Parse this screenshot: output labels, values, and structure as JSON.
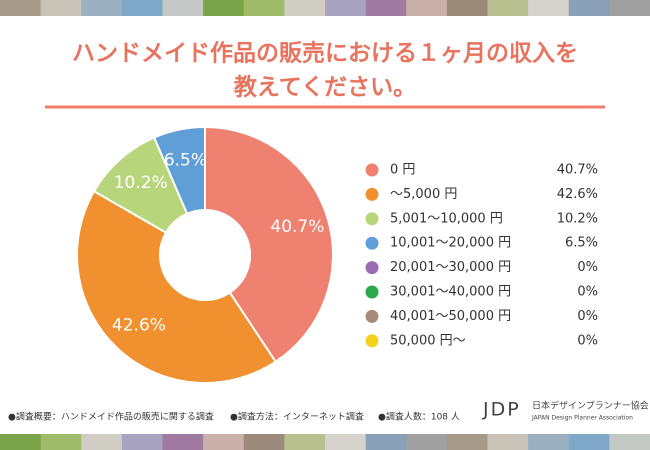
{
  "chart_data": {
    "type": "pie",
    "title": [
      "ハンドメイド作品の販売における１ヶ月の収入を",
      "教えてください。"
    ],
    "categories": [
      "0 円",
      "〜5,000 円",
      "5,001〜10,000 円",
      "10,001〜20,000 円",
      "20,001〜30,000 円",
      "30,001〜40,000 円",
      "40,001〜50,000 円",
      "50,000 円〜"
    ],
    "values": [
      40.7,
      42.6,
      10.2,
      6.5,
      0,
      0,
      0,
      0
    ],
    "value_labels": [
      "40.7%",
      "42.6%",
      "10.2%",
      "6.5%",
      "0%",
      "0%",
      "0%",
      "0%"
    ],
    "colors": [
      "#ee8170",
      "#f0902f",
      "#b7d67b",
      "#5f9ed6",
      "#9a6bb0",
      "#2aa84a",
      "#a88a7a",
      "#f2d21d"
    ],
    "donut": true
  },
  "footer": {
    "notes": [
      "●調査概要：ハンドメイド作品の販売に関する調査",
      "●調査方法：インターネット調査",
      "●調査人数：108 人"
    ],
    "logo": {
      "mark": "JDP",
      "name": "日本デザインプランナー協会",
      "name_en": "JAPAN Design Planner Association"
    }
  }
}
